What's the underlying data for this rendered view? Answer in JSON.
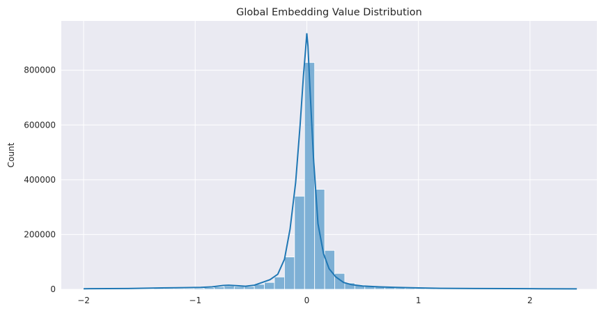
{
  "chart_data": {
    "type": "histogram",
    "title": "Global Embedding Value Distribution",
    "xlabel": "",
    "ylabel": "Count",
    "xlim": [
      -2.2,
      2.6
    ],
    "ylim": [
      0,
      980000
    ],
    "x_ticks": [
      -2,
      -1,
      0,
      1,
      2
    ],
    "x_tick_labels": [
      "−2",
      "−1",
      "0",
      "1",
      "2"
    ],
    "y_ticks": [
      0,
      200000,
      400000,
      600000,
      800000
    ],
    "y_tick_labels": [
      "0",
      "200000",
      "400000",
      "600000",
      "800000"
    ],
    "grid": true,
    "legend": false,
    "bar_color": "#7eb0d5",
    "line_color": "#1f77b4",
    "plot_background": "#eaeaf2",
    "bins": [
      {
        "x0": -2.0,
        "x1": -1.91,
        "count": 1000
      },
      {
        "x0": -1.91,
        "x1": -1.82,
        "count": 1000
      },
      {
        "x0": -1.82,
        "x1": -1.73,
        "count": 1000
      },
      {
        "x0": -1.73,
        "x1": -1.64,
        "count": 1000
      },
      {
        "x0": -1.64,
        "x1": -1.55,
        "count": 1000
      },
      {
        "x0": -1.55,
        "x1": -1.46,
        "count": 1500
      },
      {
        "x0": -1.46,
        "x1": -1.37,
        "count": 2000
      },
      {
        "x0": -1.37,
        "x1": -1.28,
        "count": 3000
      },
      {
        "x0": -1.28,
        "x1": -1.19,
        "count": 3000
      },
      {
        "x0": -1.19,
        "x1": -1.1,
        "count": 3000
      },
      {
        "x0": -1.1,
        "x1": -1.01,
        "count": 3000
      },
      {
        "x0": -1.01,
        "x1": -0.92,
        "count": 4000
      },
      {
        "x0": -0.92,
        "x1": -0.83,
        "count": 6000
      },
      {
        "x0": -0.83,
        "x1": -0.74,
        "count": 9000
      },
      {
        "x0": -0.74,
        "x1": -0.65,
        "count": 12000
      },
      {
        "x0": -0.65,
        "x1": -0.56,
        "count": 10000
      },
      {
        "x0": -0.56,
        "x1": -0.47,
        "count": 10000
      },
      {
        "x0": -0.47,
        "x1": -0.38,
        "count": 18000
      },
      {
        "x0": -0.38,
        "x1": -0.29,
        "count": 25000
      },
      {
        "x0": -0.29,
        "x1": -0.2,
        "count": 45000
      },
      {
        "x0": -0.2,
        "x1": -0.11,
        "count": 118000
      },
      {
        "x0": -0.11,
        "x1": -0.02,
        "count": 340000
      },
      {
        "x0": -0.02,
        "x1": 0.07,
        "count": 828000
      },
      {
        "x0": 0.07,
        "x1": 0.16,
        "count": 365000
      },
      {
        "x0": 0.16,
        "x1": 0.25,
        "count": 142000
      },
      {
        "x0": 0.25,
        "x1": 0.34,
        "count": 58000
      },
      {
        "x0": 0.34,
        "x1": 0.43,
        "count": 23000
      },
      {
        "x0": 0.43,
        "x1": 0.52,
        "count": 15000
      },
      {
        "x0": 0.52,
        "x1": 0.61,
        "count": 12000
      },
      {
        "x0": 0.61,
        "x1": 0.7,
        "count": 9000
      },
      {
        "x0": 0.7,
        "x1": 0.79,
        "count": 7000
      },
      {
        "x0": 0.79,
        "x1": 0.88,
        "count": 5000
      },
      {
        "x0": 0.88,
        "x1": 0.97,
        "count": 4000
      },
      {
        "x0": 0.97,
        "x1": 1.06,
        "count": 3000
      },
      {
        "x0": 1.06,
        "x1": 1.15,
        "count": 2500
      },
      {
        "x0": 1.15,
        "x1": 1.24,
        "count": 2000
      },
      {
        "x0": 1.24,
        "x1": 1.33,
        "count": 1500
      },
      {
        "x0": 1.33,
        "x1": 1.42,
        "count": 1200
      },
      {
        "x0": 1.42,
        "x1": 1.51,
        "count": 1000
      },
      {
        "x0": 1.51,
        "x1": 1.6,
        "count": 1000
      },
      {
        "x0": 1.6,
        "x1": 1.69,
        "count": 800
      },
      {
        "x0": 1.69,
        "x1": 1.78,
        "count": 700
      },
      {
        "x0": 1.78,
        "x1": 1.87,
        "count": 600
      },
      {
        "x0": 1.87,
        "x1": 1.96,
        "count": 500
      },
      {
        "x0": 1.96,
        "x1": 2.05,
        "count": 500
      },
      {
        "x0": 2.05,
        "x1": 2.14,
        "count": 400
      },
      {
        "x0": 2.14,
        "x1": 2.23,
        "count": 400
      },
      {
        "x0": 2.23,
        "x1": 2.32,
        "count": 300
      },
      {
        "x0": 2.32,
        "x1": 2.42,
        "count": 300
      }
    ],
    "kde": {
      "x": [
        -2.0,
        -1.6,
        -1.3,
        -1.1,
        -0.95,
        -0.85,
        -0.75,
        -0.7,
        -0.62,
        -0.55,
        -0.47,
        -0.4,
        -0.33,
        -0.26,
        -0.2,
        -0.15,
        -0.1,
        -0.06,
        -0.03,
        -0.01,
        0.0,
        0.01,
        0.03,
        0.06,
        0.1,
        0.15,
        0.2,
        0.26,
        0.33,
        0.4,
        0.5,
        0.65,
        0.8,
        1.0,
        1.2,
        1.5,
        1.8,
        2.1,
        2.42
      ],
      "y": [
        2000,
        3000,
        5000,
        6000,
        7000,
        9000,
        14000,
        15000,
        13000,
        11000,
        15000,
        25000,
        35000,
        55000,
        110000,
        220000,
        390000,
        600000,
        780000,
        880000,
        935000,
        890000,
        720000,
        480000,
        240000,
        130000,
        75000,
        45000,
        25000,
        17000,
        12000,
        9000,
        7000,
        5000,
        3500,
        3000,
        2500,
        2000,
        1500
      ]
    }
  }
}
